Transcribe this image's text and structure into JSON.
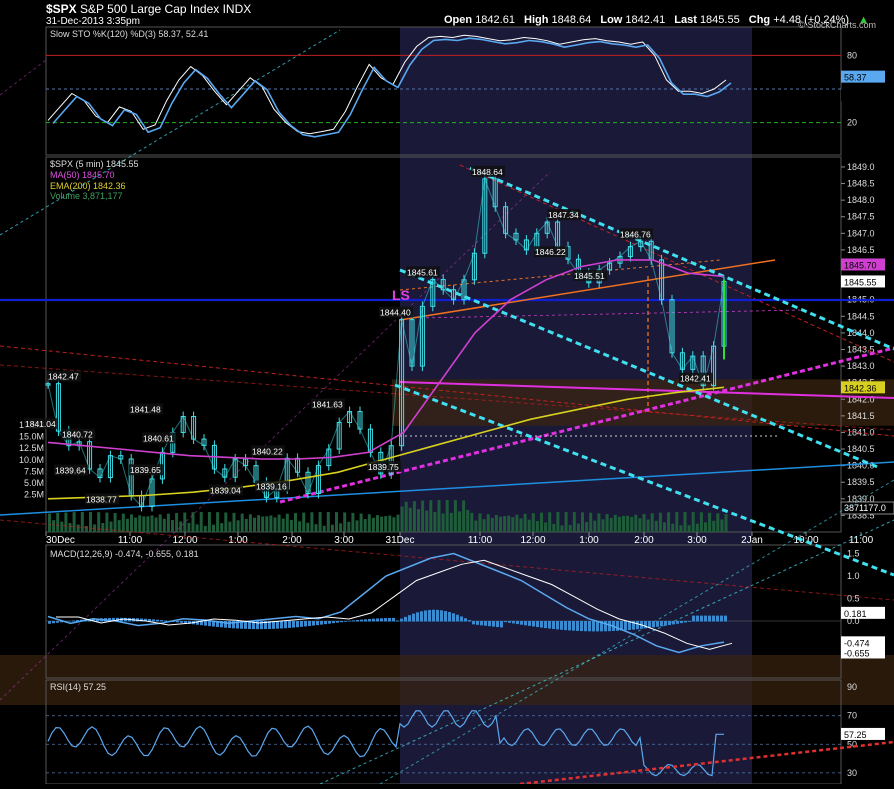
{
  "header": {
    "symbol": "$SPX",
    "name": "S&P 500 Large Cap Index",
    "exchange": "INDX",
    "datetime": "31-Dec-2013 3:35pm",
    "open_label": "Open",
    "open": "1842.61",
    "high_label": "High",
    "high": "1848.64",
    "low_label": "Low",
    "low": "1842.41",
    "last_label": "Last",
    "last": "1845.55",
    "chg_label": "Chg",
    "chg": "+4.48 (+0.24%)",
    "watermark": "© StockCharts.com"
  },
  "colors": {
    "background": "#000000",
    "price": "#3fe0e8",
    "ma50": "#d040d0",
    "ema200": "#d8d020",
    "volume": "#1e5c3a",
    "trend_cyan": "#40e0f0",
    "blue_line": "#1020d0",
    "orange_line": "#f07020",
    "red_grid": "#c02020",
    "green_grid": "#20b020",
    "highlight": "#1a1a38"
  },
  "sto_panel": {
    "legend": "Slow STO %K(120) %D(3) 58.37, 52.41",
    "levels": [
      "80",
      "20"
    ],
    "value_k": "58.37",
    "value_d": "52.41"
  },
  "price_panel": {
    "legend_spx": "$SPX (5 min) 1845.55",
    "legend_ma": "MA(50) 1845.70",
    "legend_ema": "EMA(200) 1842.36",
    "legend_vol": "Volume 3,871,177",
    "pattern_label": "LS",
    "vol_axis": [
      "17.5M",
      "15.0M",
      "12.5M",
      "10.0M",
      "7.5M",
      "5.0M",
      "2.5M"
    ],
    "vol_value": "3871177.0",
    "last_tag": "1845.55",
    "ma_tag": "1845.70",
    "ema_tag": "1842.36"
  },
  "macd_panel": {
    "legend": "MACD(12,26,9) -0.474, -0.655, 0.181",
    "ticks": [
      "1.5",
      "1.0",
      "0.5",
      "0.0"
    ],
    "hist_tag": "0.181",
    "macd_tag": "-0.474",
    "signal_tag": "-0.655"
  },
  "rsi_panel": {
    "legend": "RSI(14) 57.25",
    "ticks": [
      "90",
      "70",
      "50",
      "30"
    ],
    "value": "57.25"
  },
  "chart_data": {
    "type": "line",
    "title": "$SPX S&P 500 Large Cap Index INDX",
    "x_ticks": [
      "30Dec",
      "11:00",
      "12:00",
      "1:00",
      "2:00",
      "3:00",
      "31Dec",
      "11:00",
      "12:00",
      "1:00",
      "2:00",
      "3:00",
      "2Jan",
      "10:00",
      "11:00"
    ],
    "ylim": [
      1838.0,
      1849.3
    ],
    "y_ticks": [
      "1849.0",
      "1848.5",
      "1848.0",
      "1847.5",
      "1847.0",
      "1846.5",
      "1846.0",
      "1845.5",
      "1845.0",
      "1844.5",
      "1844.0",
      "1843.5",
      "1843.0",
      "1842.5",
      "1842.0",
      "1841.5",
      "1841.0",
      "1840.5",
      "1840.0",
      "1839.5",
      "1839.0",
      "1838.5"
    ],
    "annotations": [
      {
        "label": "1842.47",
        "value": 1842.47
      },
      {
        "label": "1841.04",
        "value": 1841.04
      },
      {
        "label": "1840.72",
        "value": 1840.72
      },
      {
        "label": "1841.48",
        "value": 1841.48
      },
      {
        "label": "1840.61",
        "value": 1840.61
      },
      {
        "label": "1839.64",
        "value": 1839.64
      },
      {
        "label": "1839.65",
        "value": 1839.65
      },
      {
        "label": "1840.22",
        "value": 1840.22
      },
      {
        "label": "1841.63",
        "value": 1841.63
      },
      {
        "label": "1839.04",
        "value": 1839.04
      },
      {
        "label": "1839.16",
        "value": 1839.16
      },
      {
        "label": "1838.77",
        "value": 1838.77
      },
      {
        "label": "1839.75",
        "value": 1839.75
      },
      {
        "label": "1845.61",
        "value": 1845.61
      },
      {
        "label": "1844.40",
        "value": 1844.4
      },
      {
        "label": "1848.64",
        "value": 1848.64
      },
      {
        "label": "1847.34",
        "value": 1847.34
      },
      {
        "label": "1846.22",
        "value": 1846.22
      },
      {
        "label": "1845.51",
        "value": 1845.51
      },
      {
        "label": "1846.76",
        "value": 1846.76
      },
      {
        "label": "1842.41",
        "value": 1842.41
      }
    ],
    "series": [
      {
        "name": "$SPX (5 min)",
        "close": [
          1842.47,
          1841.04,
          1840.6,
          1840.72,
          1839.9,
          1839.64,
          1840.3,
          1840.2,
          1839.1,
          1838.77,
          1839.6,
          1840.4,
          1841.0,
          1841.48,
          1840.8,
          1840.61,
          1839.9,
          1839.65,
          1840.2,
          1840.0,
          1839.5,
          1839.04,
          1839.3,
          1840.22,
          1839.8,
          1839.16,
          1840.0,
          1840.5,
          1841.3,
          1841.63,
          1841.1,
          1840.4,
          1839.75,
          1840.6,
          1844.4,
          1843.0,
          1844.8,
          1845.61,
          1845.3,
          1845.0,
          1845.6,
          1846.4,
          1848.64,
          1847.8,
          1847.0,
          1846.8,
          1846.5,
          1847.0,
          1847.34,
          1846.6,
          1846.22,
          1845.8,
          1845.51,
          1845.9,
          1846.1,
          1846.3,
          1846.6,
          1846.76,
          1846.2,
          1845.0,
          1843.4,
          1842.9,
          1843.3,
          1842.41,
          1843.6,
          1845.55
        ]
      },
      {
        "name": "MA(50)",
        "values": [
          1840.7,
          1840.6,
          1840.5,
          1840.4,
          1840.3,
          1840.25,
          1840.2,
          1840.2,
          1840.25,
          1840.4,
          1841.0,
          1842.5,
          1844.0,
          1845.0,
          1845.6,
          1846.0,
          1846.2,
          1846.2,
          1845.8,
          1845.7
        ]
      },
      {
        "name": "EMA(200)",
        "values": [
          1839.0,
          1839.05,
          1839.1,
          1839.2,
          1839.35,
          1839.55,
          1839.8,
          1840.2,
          1840.6,
          1841.0,
          1841.4,
          1841.7,
          1842.0,
          1842.2,
          1842.36
        ]
      }
    ],
    "grid": true
  }
}
